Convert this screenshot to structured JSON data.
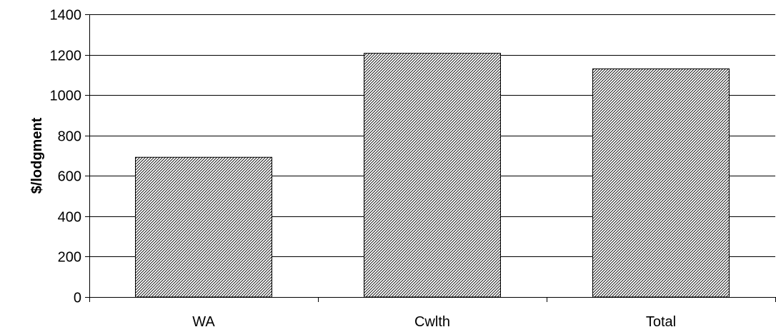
{
  "chart_data": {
    "type": "bar",
    "categories": [
      "WA",
      "Cwlth",
      "Total"
    ],
    "values": [
      692,
      1207,
      1130
    ],
    "xlabel": "",
    "ylabel": "$/lodgment",
    "ylim": [
      0,
      1400
    ],
    "yticks": [
      0,
      200,
      400,
      600,
      800,
      1000,
      1200,
      1400
    ],
    "grid": true,
    "legend": "none",
    "bar_fill": "diagonal-hatch",
    "colors": {
      "bar_stroke": "#000000",
      "hatch": "#000000",
      "gridline": "#000000",
      "background": "#ffffff"
    }
  }
}
